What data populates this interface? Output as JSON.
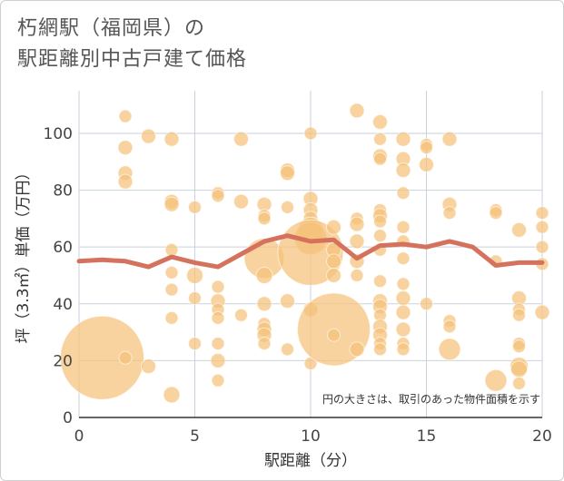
{
  "header": {
    "title_line1": "朽網駅（福岡県）の",
    "title_line2": "駅距離別中古戸建て価格"
  },
  "chart_data": {
    "type": "scatter",
    "xlabel": "駅距離（分）",
    "ylabel": "坪（3.3㎡）単価（万円）",
    "xlim": [
      0,
      20
    ],
    "ylim": [
      0,
      115
    ],
    "x_ticks": [
      0,
      5,
      10,
      15,
      20
    ],
    "y_ticks": [
      0,
      20,
      40,
      60,
      80,
      100
    ],
    "grid": true,
    "note": "円の大きさは、取引のあった物件面積を示す",
    "colors": {
      "bubble": "#f5c27a",
      "line": "#d4725e",
      "grid": "#c9d2dc",
      "plot_bg": "#ffffff"
    },
    "bubbles": [
      {
        "x": 1,
        "y": 21,
        "s": 46
      },
      {
        "x": 2,
        "y": 21,
        "s": 7
      },
      {
        "x": 2,
        "y": 106,
        "s": 7
      },
      {
        "x": 2,
        "y": 95,
        "s": 8
      },
      {
        "x": 2,
        "y": 86,
        "s": 8
      },
      {
        "x": 2,
        "y": 83,
        "s": 8
      },
      {
        "x": 3,
        "y": 99,
        "s": 8
      },
      {
        "x": 3,
        "y": 18,
        "s": 8
      },
      {
        "x": 4,
        "y": 98,
        "s": 8
      },
      {
        "x": 4,
        "y": 76,
        "s": 8
      },
      {
        "x": 4,
        "y": 75,
        "s": 8
      },
      {
        "x": 4,
        "y": 59,
        "s": 7
      },
      {
        "x": 4,
        "y": 51,
        "s": 7
      },
      {
        "x": 4,
        "y": 45,
        "s": 7
      },
      {
        "x": 4,
        "y": 35,
        "s": 7
      },
      {
        "x": 4,
        "y": 8,
        "s": 9
      },
      {
        "x": 5,
        "y": 74,
        "s": 7
      },
      {
        "x": 5,
        "y": 50,
        "s": 9
      },
      {
        "x": 5,
        "y": 42,
        "s": 7
      },
      {
        "x": 5,
        "y": 26,
        "s": 7
      },
      {
        "x": 6,
        "y": 79,
        "s": 7
      },
      {
        "x": 6,
        "y": 78,
        "s": 7
      },
      {
        "x": 6,
        "y": 46,
        "s": 7
      },
      {
        "x": 6,
        "y": 41,
        "s": 8
      },
      {
        "x": 6,
        "y": 38,
        "s": 7
      },
      {
        "x": 6,
        "y": 35,
        "s": 7
      },
      {
        "x": 6,
        "y": 26,
        "s": 7
      },
      {
        "x": 6,
        "y": 20,
        "s": 8
      },
      {
        "x": 6,
        "y": 13,
        "s": 7
      },
      {
        "x": 7,
        "y": 98,
        "s": 8
      },
      {
        "x": 7,
        "y": 76,
        "s": 8
      },
      {
        "x": 7,
        "y": 36,
        "s": 7
      },
      {
        "x": 8,
        "y": 75,
        "s": 8
      },
      {
        "x": 8,
        "y": 71,
        "s": 7
      },
      {
        "x": 8,
        "y": 70,
        "s": 7
      },
      {
        "x": 8,
        "y": 56,
        "s": 22
      },
      {
        "x": 8,
        "y": 50,
        "s": 9
      },
      {
        "x": 8,
        "y": 40,
        "s": 8
      },
      {
        "x": 8,
        "y": 33,
        "s": 7
      },
      {
        "x": 8,
        "y": 31,
        "s": 8
      },
      {
        "x": 8,
        "y": 29,
        "s": 8
      },
      {
        "x": 8,
        "y": 26,
        "s": 7
      },
      {
        "x": 9,
        "y": 87,
        "s": 8
      },
      {
        "x": 9,
        "y": 86,
        "s": 8
      },
      {
        "x": 9,
        "y": 74,
        "s": 7
      },
      {
        "x": 9,
        "y": 41,
        "s": 8
      },
      {
        "x": 9,
        "y": 24,
        "s": 7
      },
      {
        "x": 10,
        "y": 100,
        "s": 7
      },
      {
        "x": 10,
        "y": 77,
        "s": 8
      },
      {
        "x": 10,
        "y": 73,
        "s": 8
      },
      {
        "x": 10,
        "y": 70,
        "s": 8
      },
      {
        "x": 10,
        "y": 66,
        "s": 14
      },
      {
        "x": 10,
        "y": 63,
        "s": 18
      },
      {
        "x": 10,
        "y": 58,
        "s": 36
      },
      {
        "x": 10,
        "y": 38,
        "s": 8
      },
      {
        "x": 10,
        "y": 19,
        "s": 7
      },
      {
        "x": 11,
        "y": 67,
        "s": 8
      },
      {
        "x": 11,
        "y": 59,
        "s": 8
      },
      {
        "x": 11,
        "y": 55,
        "s": 8
      },
      {
        "x": 11,
        "y": 50,
        "s": 8
      },
      {
        "x": 11,
        "y": 31,
        "s": 40
      },
      {
        "x": 11,
        "y": 29,
        "s": 7
      },
      {
        "x": 12,
        "y": 108,
        "s": 8
      },
      {
        "x": 12,
        "y": 70,
        "s": 7
      },
      {
        "x": 12,
        "y": 68,
        "s": 8
      },
      {
        "x": 12,
        "y": 62,
        "s": 8
      },
      {
        "x": 12,
        "y": 55,
        "s": 8
      },
      {
        "x": 12,
        "y": 50,
        "s": 7
      },
      {
        "x": 12,
        "y": 24,
        "s": 8
      },
      {
        "x": 13,
        "y": 104,
        "s": 8
      },
      {
        "x": 13,
        "y": 98,
        "s": 7
      },
      {
        "x": 13,
        "y": 92,
        "s": 8
      },
      {
        "x": 13,
        "y": 91,
        "s": 7
      },
      {
        "x": 13,
        "y": 73,
        "s": 7
      },
      {
        "x": 13,
        "y": 71,
        "s": 8
      },
      {
        "x": 13,
        "y": 69,
        "s": 7
      },
      {
        "x": 13,
        "y": 64,
        "s": 7
      },
      {
        "x": 13,
        "y": 59,
        "s": 7
      },
      {
        "x": 13,
        "y": 48,
        "s": 7
      },
      {
        "x": 13,
        "y": 41,
        "s": 8
      },
      {
        "x": 13,
        "y": 39,
        "s": 8
      },
      {
        "x": 13,
        "y": 36,
        "s": 7
      },
      {
        "x": 13,
        "y": 32,
        "s": 8
      },
      {
        "x": 13,
        "y": 29,
        "s": 8
      },
      {
        "x": 13,
        "y": 26,
        "s": 7
      },
      {
        "x": 13,
        "y": 24,
        "s": 7
      },
      {
        "x": 14,
        "y": 98,
        "s": 8
      },
      {
        "x": 14,
        "y": 91,
        "s": 8
      },
      {
        "x": 14,
        "y": 87,
        "s": 8
      },
      {
        "x": 14,
        "y": 79,
        "s": 7
      },
      {
        "x": 14,
        "y": 67,
        "s": 7
      },
      {
        "x": 14,
        "y": 62,
        "s": 7
      },
      {
        "x": 14,
        "y": 56,
        "s": 7
      },
      {
        "x": 14,
        "y": 47,
        "s": 7
      },
      {
        "x": 14,
        "y": 42,
        "s": 8
      },
      {
        "x": 14,
        "y": 37,
        "s": 8
      },
      {
        "x": 14,
        "y": 31,
        "s": 8
      },
      {
        "x": 14,
        "y": 26,
        "s": 7
      },
      {
        "x": 14,
        "y": 24,
        "s": 7
      },
      {
        "x": 15,
        "y": 96,
        "s": 7
      },
      {
        "x": 15,
        "y": 95,
        "s": 7
      },
      {
        "x": 15,
        "y": 89,
        "s": 8
      },
      {
        "x": 15,
        "y": 40,
        "s": 7
      },
      {
        "x": 16,
        "y": 98,
        "s": 8
      },
      {
        "x": 16,
        "y": 75,
        "s": 8
      },
      {
        "x": 16,
        "y": 72,
        "s": 7
      },
      {
        "x": 16,
        "y": 34,
        "s": 7
      },
      {
        "x": 16,
        "y": 32,
        "s": 7
      },
      {
        "x": 16,
        "y": 24,
        "s": 12
      },
      {
        "x": 18,
        "y": 73,
        "s": 7
      },
      {
        "x": 18,
        "y": 72,
        "s": 7
      },
      {
        "x": 18,
        "y": 55,
        "s": 7
      },
      {
        "x": 18,
        "y": 13,
        "s": 12
      },
      {
        "x": 19,
        "y": 66,
        "s": 8
      },
      {
        "x": 19,
        "y": 42,
        "s": 8
      },
      {
        "x": 19,
        "y": 38,
        "s": 7
      },
      {
        "x": 19,
        "y": 36,
        "s": 7
      },
      {
        "x": 19,
        "y": 26,
        "s": 7
      },
      {
        "x": 19,
        "y": 25,
        "s": 7
      },
      {
        "x": 19,
        "y": 18,
        "s": 10
      },
      {
        "x": 19,
        "y": 17,
        "s": 9
      },
      {
        "x": 19,
        "y": 12,
        "s": 7
      },
      {
        "x": 20,
        "y": 72,
        "s": 7
      },
      {
        "x": 20,
        "y": 67,
        "s": 7
      },
      {
        "x": 20,
        "y": 60,
        "s": 7
      },
      {
        "x": 20,
        "y": 54,
        "s": 7
      },
      {
        "x": 20,
        "y": 37,
        "s": 8
      }
    ],
    "series": [
      {
        "x": [
          0,
          1,
          2,
          3,
          4,
          5,
          6,
          7,
          8,
          9,
          10,
          11,
          12,
          13,
          14,
          15,
          16,
          17,
          18,
          19,
          20
        ],
        "values": [
          55,
          55.5,
          55,
          53,
          56.5,
          54.5,
          53,
          57.5,
          62,
          64,
          62,
          62.5,
          56,
          60.5,
          61,
          60,
          62,
          60,
          53.5,
          54.5,
          54.5
        ]
      }
    ]
  }
}
